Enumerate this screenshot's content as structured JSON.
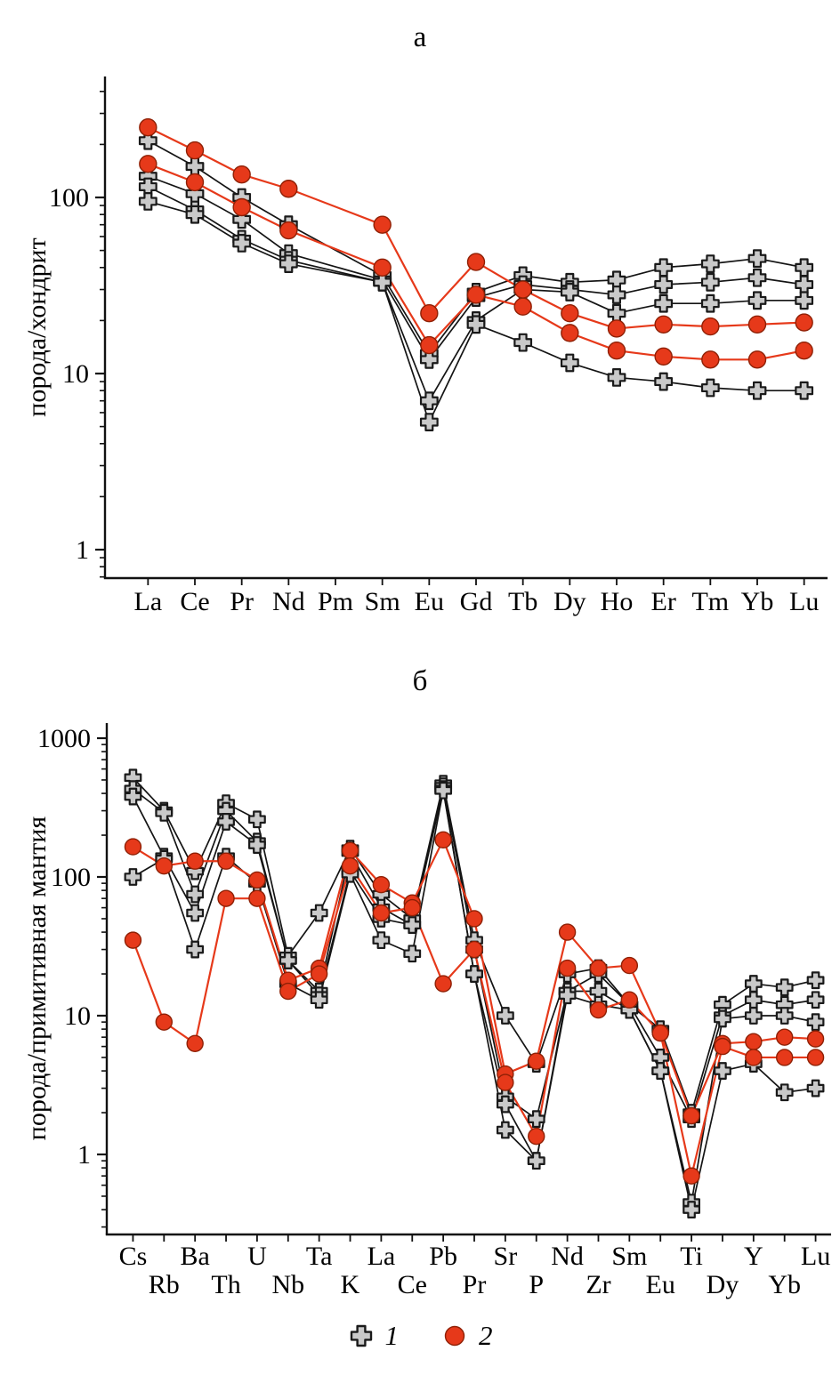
{
  "panel_a": {
    "title": "а",
    "y_label": "порода/хондрит",
    "y_tick_labels": [
      "1",
      "10",
      "100"
    ]
  },
  "panel_b": {
    "title": "б",
    "y_label": "порода/примитивная мантия",
    "y_tick_labels": [
      "1",
      "10",
      "100",
      "1000"
    ]
  },
  "legend": {
    "items": [
      {
        "label": "1",
        "marker": "cross"
      },
      {
        "label": "2",
        "marker": "circle"
      }
    ]
  },
  "colors": {
    "axis": "#111111",
    "black_line": "#141414",
    "cross_fill": "#c9c9c9",
    "cross_stroke": "#1a1a1a",
    "red_line": "#e6391a",
    "red_fill": "#e6391a",
    "red_stroke": "#8f2005"
  },
  "chart_data": [
    {
      "id": "chart-a",
      "type": "line",
      "scale": "log",
      "title": "а",
      "ylabel": "порода/хондрит",
      "ylim": [
        1,
        400
      ],
      "grid": false,
      "categories": [
        "La",
        "Ce",
        "Pr",
        "Nd",
        "Pm",
        "Sm",
        "Eu",
        "Gd",
        "Tb",
        "Dy",
        "Ho",
        "Er",
        "Tm",
        "Yb",
        "Lu"
      ],
      "series": [
        {
          "name": "group1-line1",
          "group": "1",
          "marker": "cross",
          "values": [
            210,
            150,
            100,
            70,
            null,
            36,
            13,
            29,
            36,
            33,
            34,
            40,
            42,
            45,
            40
          ]
        },
        {
          "name": "group1-line2",
          "group": "1",
          "marker": "cross",
          "values": [
            132,
            105,
            75,
            48,
            null,
            34,
            12,
            27,
            32,
            30,
            28,
            32,
            33,
            35,
            32
          ]
        },
        {
          "name": "group1-line3",
          "group": "1",
          "marker": "cross",
          "values": [
            115,
            85,
            58,
            44,
            null,
            33,
            7,
            20,
            30,
            29,
            22,
            25,
            25,
            26,
            26
          ]
        },
        {
          "name": "group1-line4",
          "group": "1",
          "marker": "cross",
          "values": [
            95,
            80,
            55,
            42,
            null,
            33,
            5.3,
            19,
            15,
            11.5,
            9.5,
            9,
            8.3,
            8,
            8
          ]
        },
        {
          "name": "group2-line1",
          "group": "2",
          "marker": "circle",
          "values": [
            250,
            185,
            135,
            112,
            null,
            70,
            22,
            43,
            30,
            22,
            18,
            19,
            18.5,
            19,
            19.5
          ]
        },
        {
          "name": "group2-line2",
          "group": "2",
          "marker": "circle",
          "values": [
            155,
            122,
            88,
            65,
            null,
            40,
            14.5,
            28,
            24,
            17,
            13.5,
            12.5,
            12,
            12,
            13.5
          ]
        }
      ]
    },
    {
      "id": "chart-b",
      "type": "line",
      "scale": "log",
      "title": "б",
      "ylabel": "порода/примитивная мантия",
      "ylim": [
        0.3,
        1250
      ],
      "grid": false,
      "categories": [
        "Cs",
        "Rb",
        "Ba",
        "Th",
        "U",
        "Nb",
        "Ta",
        "K",
        "La",
        "Ce",
        "Pb",
        "Pr",
        "Sr",
        "P",
        "Nd",
        "Zr",
        "Sm",
        "Eu",
        "Ti",
        "Dy",
        "Y",
        "Yb",
        "Lu"
      ],
      "series": [
        {
          "name": "group1-line1",
          "group": "1",
          "marker": "cross",
          "values": [
            520,
            300,
            110,
            340,
            260,
            27,
            55,
            160,
            75,
            50,
            470,
            35,
            10,
            4.5,
            20,
            22,
            12,
            8,
            2.0,
            12,
            17,
            16,
            18
          ]
        },
        {
          "name": "group1-line2",
          "group": "1",
          "marker": "cross",
          "values": [
            430,
            290,
            75,
            300,
            180,
            25,
            15,
            150,
            60,
            45,
            450,
            30,
            2.6,
            1.8,
            15,
            20,
            12,
            5,
            1.8,
            10,
            13,
            12,
            13
          ]
        },
        {
          "name": "group1-line3",
          "group": "1",
          "marker": "cross",
          "values": [
            380,
            140,
            55,
            250,
            170,
            25,
            14,
            110,
            50,
            45,
            430,
            20,
            2.3,
            0.9,
            15,
            15,
            11,
            4,
            0.45,
            9.5,
            10,
            10,
            9
          ]
        },
        {
          "name": "group1-line4",
          "group": "1",
          "marker": "cross",
          "values": [
            100,
            135,
            30,
            140,
            90,
            17,
            13,
            105,
            35,
            28,
            420,
            20,
            1.5,
            0.9,
            14,
            12,
            11,
            4,
            0.4,
            4,
            4.5,
            2.8,
            3
          ]
        },
        {
          "name": "group2-line1",
          "group": "2",
          "marker": "circle",
          "values": [
            165,
            120,
            130,
            130,
            95,
            18,
            22,
            155,
            88,
            65,
            185,
            50,
            3.8,
            4.7,
            40,
            22,
            23,
            7.5,
            1.9,
            6.3,
            6.5,
            7,
            6.8
          ]
        },
        {
          "name": "group2-line2",
          "group": "2",
          "marker": "circle",
          "values": [
            35,
            9,
            6.3,
            70,
            70,
            15,
            20,
            120,
            55,
            60,
            17,
            30,
            3.3,
            1.35,
            22,
            11,
            13,
            7.5,
            0.7,
            6,
            5,
            5,
            5
          ]
        }
      ]
    }
  ]
}
